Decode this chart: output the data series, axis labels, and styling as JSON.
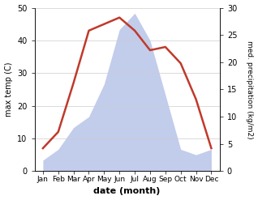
{
  "months": [
    "Jan",
    "Feb",
    "Mar",
    "Apr",
    "May",
    "Jun",
    "Jul",
    "Aug",
    "Sep",
    "Oct",
    "Nov",
    "Dec"
  ],
  "temperature": [
    7,
    12,
    27,
    43,
    45,
    47,
    43,
    37,
    38,
    33,
    22,
    7
  ],
  "precipitation": [
    2,
    4,
    8,
    10,
    16,
    26,
    29,
    24,
    14,
    4,
    3,
    4
  ],
  "temp_color": "#c0392b",
  "precip_fill_color": "#b8c4e8",
  "temp_ylim": [
    0,
    50
  ],
  "precip_ylim": [
    0,
    30
  ],
  "temp_yticks": [
    0,
    10,
    20,
    30,
    40,
    50
  ],
  "precip_yticks": [
    0,
    5,
    10,
    15,
    20,
    25,
    30
  ],
  "ylabel_left": "max temp (C)",
  "ylabel_right": "med. precipitation (kg/m2)",
  "xlabel": "date (month)",
  "bg_color": "#ffffff",
  "grid_color": "#cccccc"
}
